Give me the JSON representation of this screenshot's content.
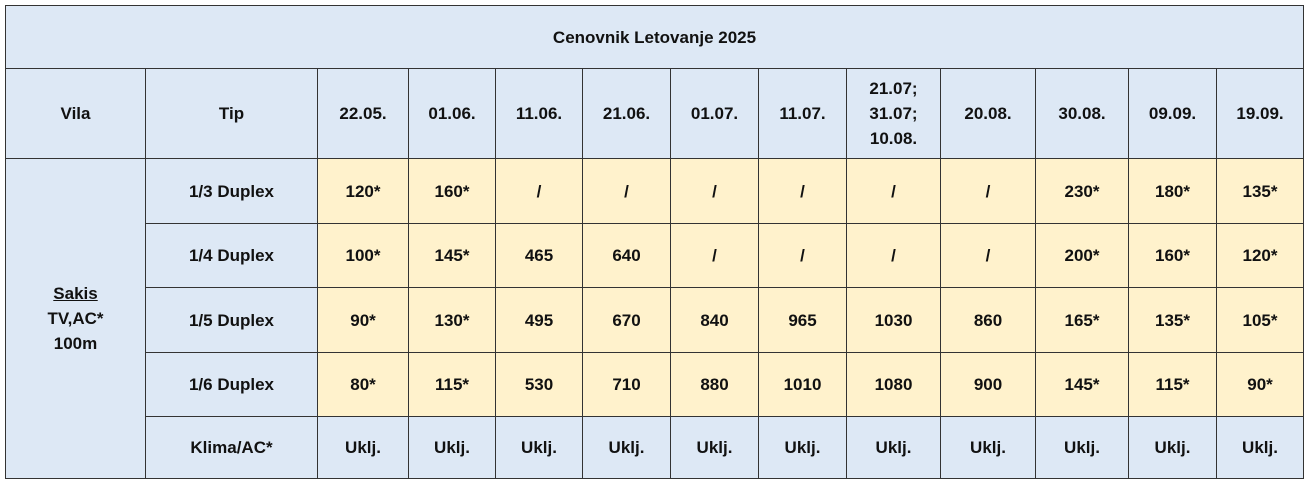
{
  "title": "Cenovnik Letovanje 2025",
  "header": {
    "vila": "Vila",
    "tip": "Tip",
    "dates": [
      "22.05.",
      "01.06.",
      "11.06.",
      "21.06.",
      "01.07.",
      "11.07.",
      "21.07;\n31.07;\n10.08.",
      "20.08.",
      "30.08.",
      "09.09.",
      "19.09."
    ]
  },
  "villa": {
    "name": "Sakis",
    "features": "TV,AC*",
    "distance": "100m"
  },
  "rows": [
    {
      "type": "1/3 Duplex",
      "prices": [
        "120*",
        "160*",
        "/",
        "/",
        "/",
        "/",
        "/",
        "/",
        "230*",
        "180*",
        "135*"
      ]
    },
    {
      "type": "1/4 Duplex",
      "prices": [
        "100*",
        "145*",
        "465",
        "640",
        "/",
        "/",
        "/",
        "/",
        "200*",
        "160*",
        "120*"
      ]
    },
    {
      "type": "1/5 Duplex",
      "prices": [
        "90*",
        "130*",
        "495",
        "670",
        "840",
        "965",
        "1030",
        "860",
        "165*",
        "135*",
        "105*"
      ]
    },
    {
      "type": "1/6 Duplex",
      "prices": [
        "80*",
        "115*",
        "530",
        "710",
        "880",
        "1010",
        "1080",
        "900",
        "145*",
        "115*",
        "90*"
      ]
    }
  ],
  "footer": {
    "type": "Klima/AC*",
    "values": [
      "Uklj.",
      "Uklj.",
      "Uklj.",
      "Uklj.",
      "Uklj.",
      "Uklj.",
      "Uklj.",
      "Uklj.",
      "Uklj.",
      "Uklj.",
      "Uklj."
    ]
  }
}
